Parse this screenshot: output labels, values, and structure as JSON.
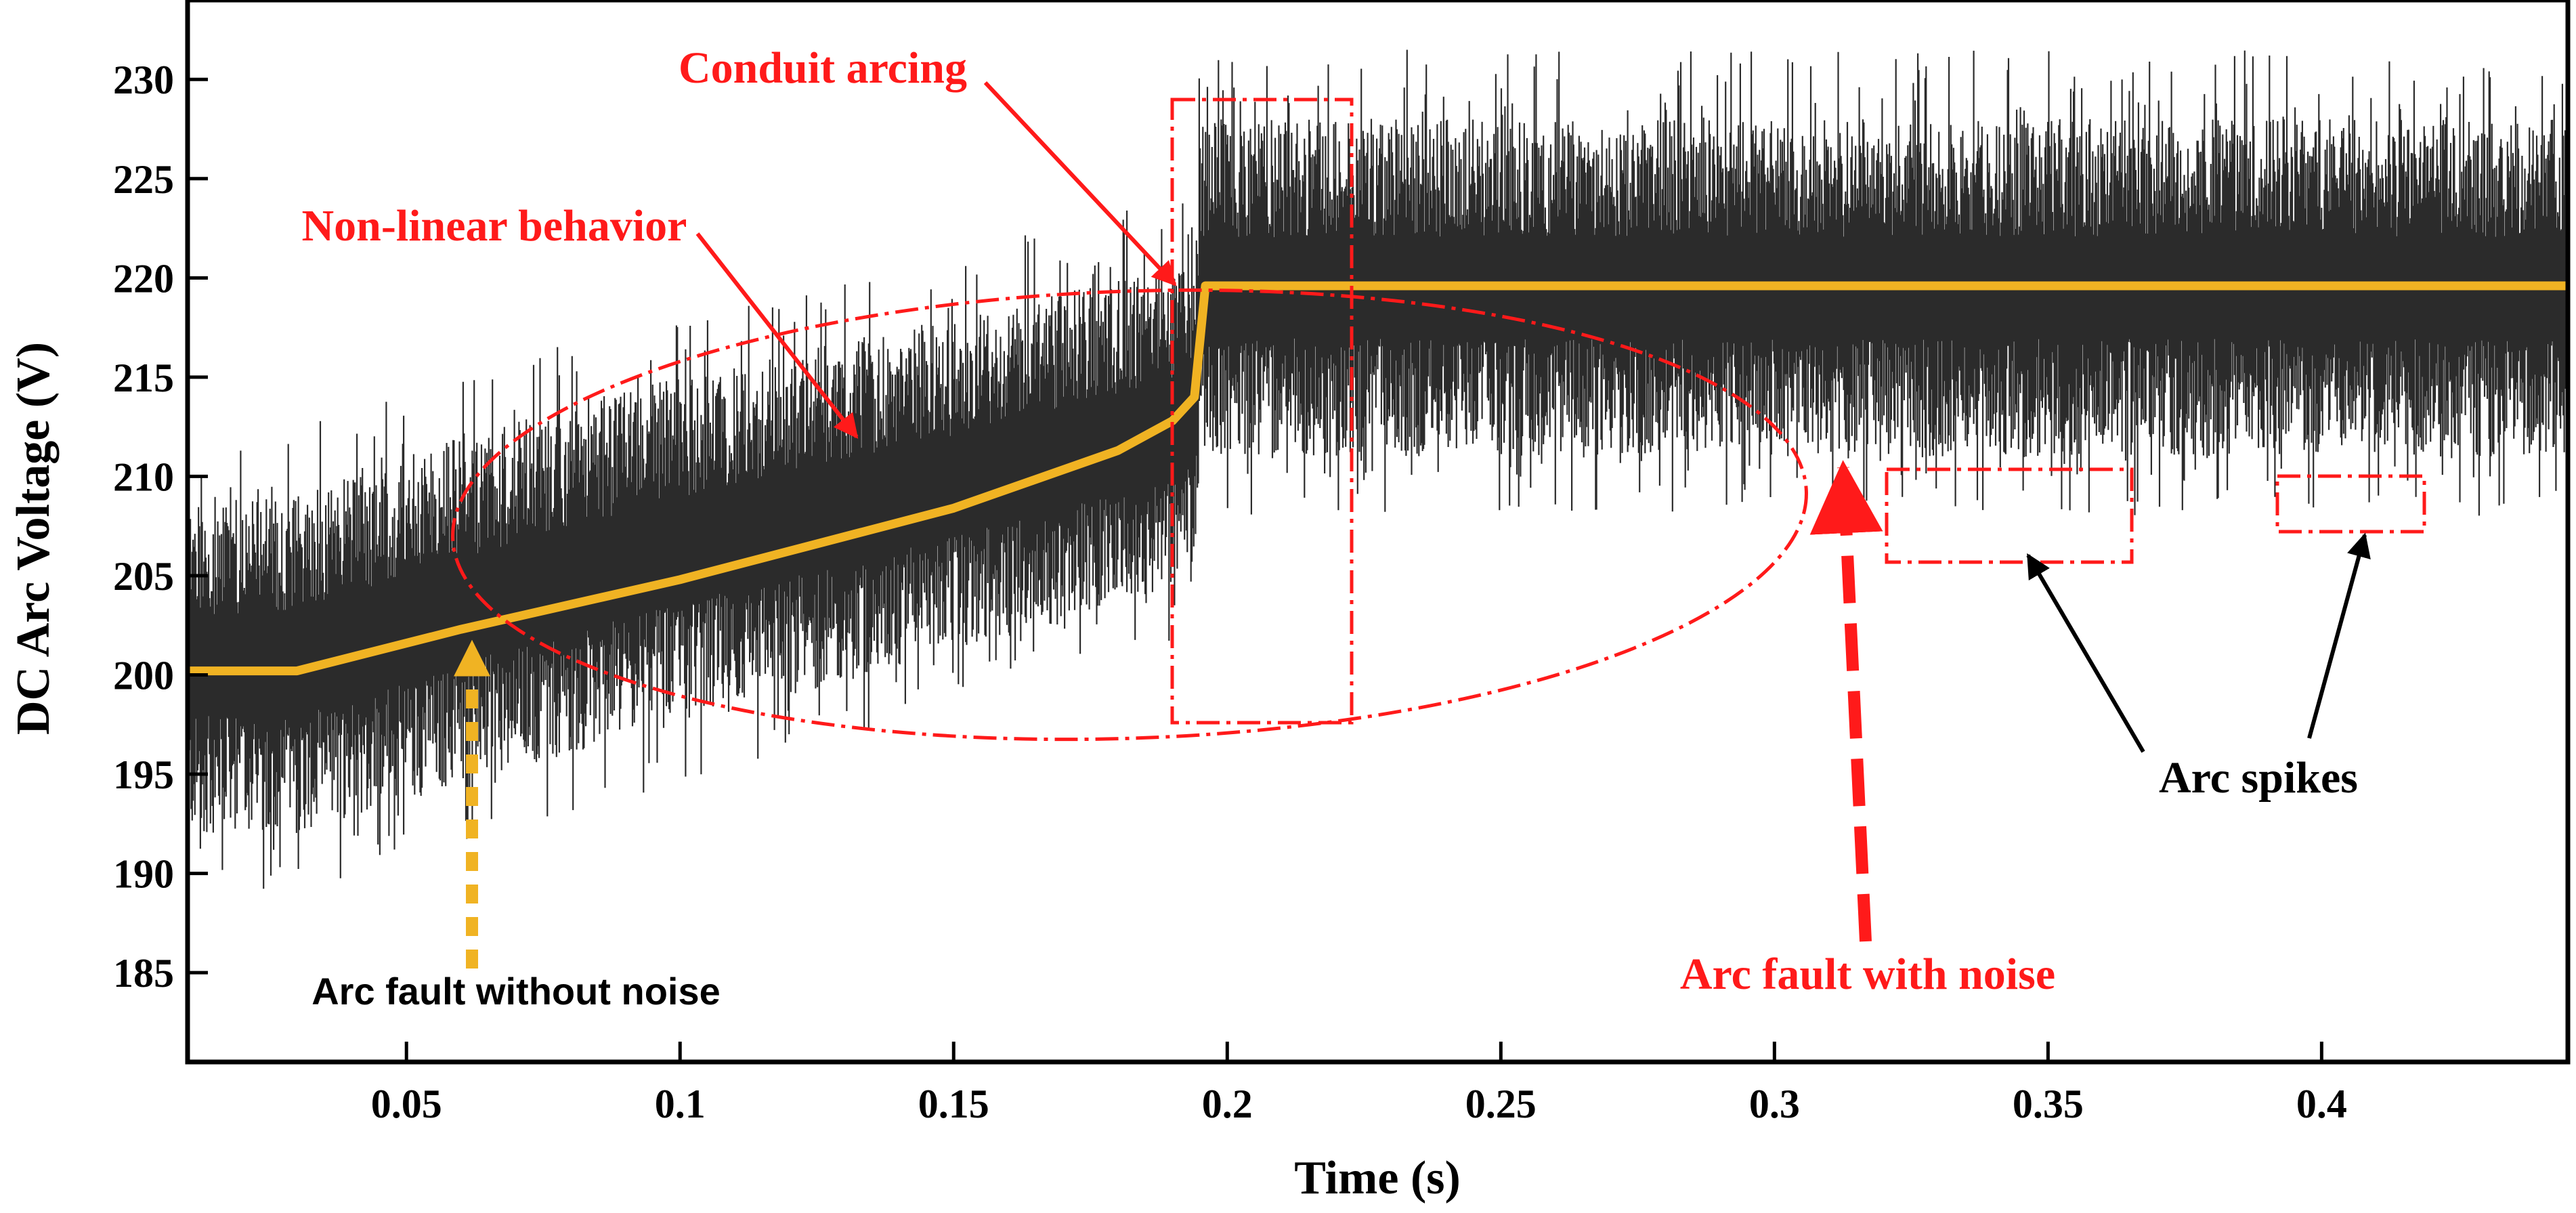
{
  "chart_data": {
    "type": "line",
    "title": "",
    "xlabel": "Time (s)",
    "ylabel": "DC Arc Voltage (V)",
    "xlim": [
      0.01,
      0.445
    ],
    "ylim": [
      180.5,
      234
    ],
    "xticks": [
      0.05,
      0.1,
      0.15,
      0.2,
      0.25,
      0.3,
      0.35,
      0.4
    ],
    "xtick_labels": [
      "0.05",
      "0.1",
      "0.15",
      "0.2",
      "0.25",
      "0.3",
      "0.35",
      "0.4"
    ],
    "yticks": [
      185,
      190,
      195,
      200,
      205,
      210,
      215,
      220,
      225,
      230
    ],
    "ytick_labels": [
      "185",
      "190",
      "195",
      "200",
      "205",
      "210",
      "215",
      "220",
      "225",
      "230"
    ],
    "grid": false,
    "legend": "none",
    "series": [
      {
        "role": "noisy-signal",
        "color": "#2b2b2b",
        "envelope_x": [
          0.01,
          0.03,
          0.06,
          0.1,
          0.15,
          0.19,
          0.194,
          0.195,
          0.2,
          0.445
        ],
        "envelope_upper": [
          209,
          209,
          212,
          215,
          218,
          220.5,
          221,
          228,
          228,
          228
        ],
        "envelope_lower": [
          192,
          192,
          194.5,
          197.5,
          201,
          204.5,
          205,
          211,
          211,
          211
        ],
        "spike_max": [
          232,
          234
        ],
        "spike_min": [
          187,
          205.5
        ]
      },
      {
        "role": "clean-signal",
        "color": "#f0b323",
        "x": [
          0.01,
          0.03,
          0.06,
          0.1,
          0.15,
          0.18,
          0.19,
          0.194,
          0.196,
          0.2,
          0.3,
          0.4,
          0.445
        ],
        "y": [
          200.2,
          200.2,
          202.3,
          204.8,
          208.4,
          211.3,
          212.8,
          214,
          219.6,
          219.6,
          219.6,
          219.6,
          219.6
        ]
      }
    ],
    "annotations": {
      "conduit_arcing": {
        "text": "Conduit arcing",
        "color": "#ff1a1a"
      },
      "non_linear": {
        "text": "Non-linear behavior",
        "color": "#ff1a1a"
      },
      "arc_spikes": {
        "text": "Arc spikes",
        "color": "#000000"
      },
      "fault_with_noise": {
        "text": "Arc fault with noise",
        "color": "#ff1a1a"
      },
      "fault_without_noise": {
        "text": "Arc fault without noise",
        "color": "#000000"
      }
    },
    "colors": {
      "highlight": "#ff1a1a",
      "clean_arrow": "#f0b323",
      "axes": "#000000"
    }
  }
}
